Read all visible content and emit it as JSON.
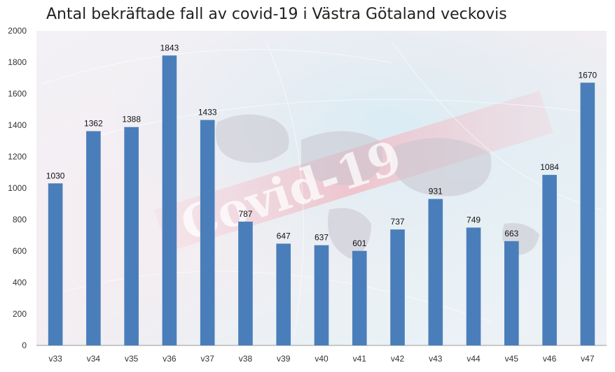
{
  "chart_data": {
    "type": "bar",
    "title": "Antal bekräftade fall av covid-19 i Västra Götaland veckovis",
    "xlabel": "",
    "ylabel": "",
    "categories": [
      "v33",
      "v34",
      "v35",
      "v36",
      "v37",
      "v38",
      "v39",
      "v40",
      "v41",
      "v42",
      "v43",
      "v44",
      "v45",
      "v46",
      "v47"
    ],
    "values": [
      1030,
      1362,
      1388,
      1843,
      1433,
      787,
      647,
      637,
      601,
      737,
      931,
      749,
      663,
      1084,
      1670
    ],
    "ylim": [
      0,
      2000
    ],
    "yticks": [
      0,
      200,
      400,
      600,
      800,
      1000,
      1200,
      1400,
      1600,
      1800,
      2000
    ],
    "grid": false,
    "bar_color": "#4a7ebb",
    "background_image": "covid-19 world map watermark",
    "watermark_text": "Covid-19"
  }
}
